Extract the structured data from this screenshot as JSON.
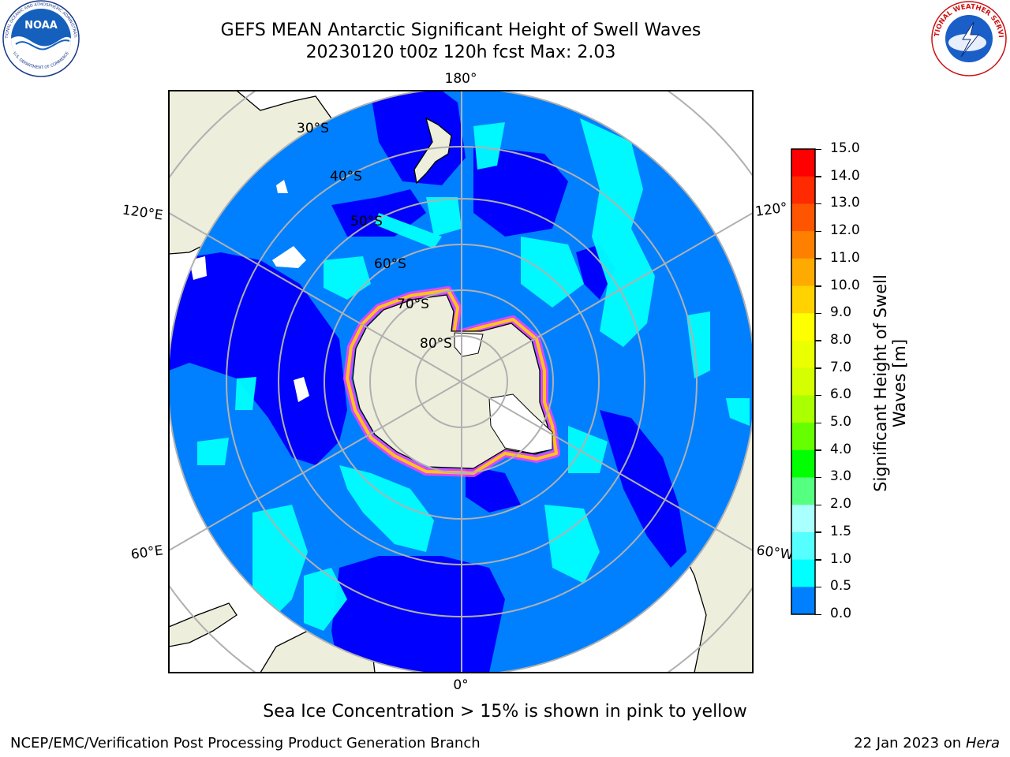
{
  "header": {
    "title_line1": "GEFS MEAN Antarctic Significant Height of Swell Waves",
    "title_line2": "20230120 t00z 120h fcst   Max: 2.03"
  },
  "logos": {
    "left_name": "NOAA",
    "right_name": "NATIONAL WEATHER SERVICE",
    "left_ring_text": "NATIONAL OCEANIC AND ATMOSPHERIC ADMINISTRATION",
    "left_ring_bottom": "U.S. DEPARTMENT OF COMMERCE"
  },
  "map": {
    "longitude_labels": {
      "top": "180°",
      "bottom": "0°",
      "left_upper": "120°E",
      "left_lower": "60°E",
      "right_upper": "120°",
      "right_lower": "60°W"
    },
    "latitude_labels": [
      "30°S",
      "40°S",
      "50°S",
      "60°S",
      "70°S",
      "80°S"
    ]
  },
  "colorbar": {
    "label": "Significant Height of Swell Waves [m]",
    "label_line1": "Significant Height of Swell",
    "label_line2": "Waves [m]",
    "ticks": [
      "15.0",
      "14.0",
      "13.0",
      "12.0",
      "11.0",
      "10.0",
      "9.0",
      "8.0",
      "7.0",
      "6.0",
      "5.0",
      "4.0",
      "3.0",
      "2.0",
      "1.5",
      "1.0",
      "0.5",
      "0.0"
    ],
    "colors": [
      "#ff0000",
      "#ff2a00",
      "#ff5500",
      "#ff8000",
      "#ffaa00",
      "#ffd200",
      "#ffff00",
      "#eaff00",
      "#d5ff00",
      "#aaff00",
      "#66ff00",
      "#00ff00",
      "#55ff80",
      "#aaffff",
      "#55ffff",
      "#00ffff",
      "#0080ff",
      "#0000ff"
    ]
  },
  "footer": {
    "note": "Sea Ice Concentration > 15% is shown in pink to yellow",
    "credit": "NCEP/EMC/Verification Post Processing Product Generation Branch",
    "date": "22 Jan 2023 on ",
    "machine": "Hera"
  },
  "colors": {
    "deep_blue": "#0000ff",
    "mid_blue": "#0080ff",
    "cyan": "#00ffff",
    "light_cyan": "#55ffff",
    "land": "#eeeedc",
    "grid": "#b0b0b0",
    "ice_edge": "#ff40ff"
  }
}
